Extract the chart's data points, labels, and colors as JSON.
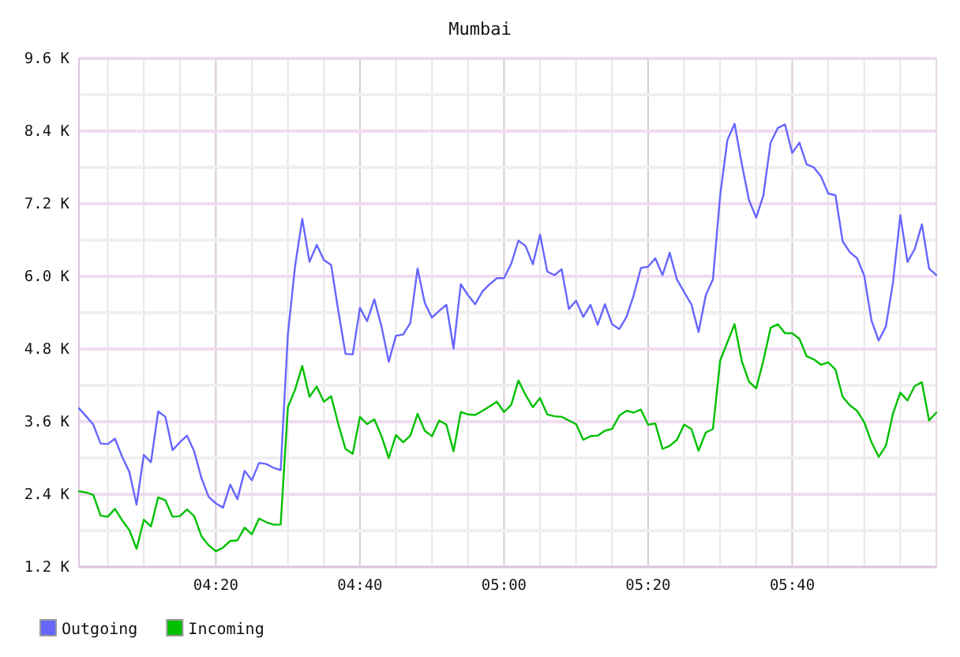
{
  "chart_data": {
    "type": "line",
    "title": "Mumbai",
    "x": [
      4.0167,
      4.0333,
      4.05,
      4.0667,
      4.0833,
      4.1,
      4.1167,
      4.1333,
      4.15,
      4.1667,
      4.1833,
      4.2,
      4.2167,
      4.2333,
      4.25,
      4.2667,
      4.2833,
      4.3,
      4.3167,
      4.3333,
      4.35,
      4.3667,
      4.3833,
      4.4,
      4.4167,
      4.4333,
      4.45,
      4.4667,
      4.4833,
      4.5,
      4.5167,
      4.5333,
      4.55,
      4.5667,
      4.5833,
      4.6,
      4.6167,
      4.6333,
      4.65,
      4.6667,
      4.6833,
      4.7,
      4.7167,
      4.7333,
      4.75,
      4.7667,
      4.7833,
      4.8,
      4.8167,
      4.8333,
      4.85,
      4.8667,
      4.8833,
      4.9,
      4.9167,
      4.9333,
      4.95,
      4.9667,
      4.9833,
      5.0,
      5.0167,
      5.0333,
      5.05,
      5.0667,
      5.0833,
      5.1,
      5.1167,
      5.1333,
      5.15,
      5.1667,
      5.1833,
      5.2,
      5.2167,
      5.2333,
      5.25,
      5.2667,
      5.2833,
      5.3,
      5.3167,
      5.3333,
      5.35,
      5.3667,
      5.3833,
      5.4,
      5.4167,
      5.4333,
      5.45,
      5.4667,
      5.4833,
      5.5,
      5.5167,
      5.5333,
      5.55,
      5.5667,
      5.5833,
      5.6,
      5.6167,
      5.6333,
      5.65,
      5.6667,
      5.6833,
      5.7,
      5.7167,
      5.7333,
      5.75,
      5.7667,
      5.7833,
      5.8,
      5.8167,
      5.8333,
      5.85,
      5.8667,
      5.8833,
      5.9,
      5.9167,
      5.9333,
      5.95,
      5.9667,
      5.9833,
      6.0
    ],
    "series": [
      {
        "name": "Outgoing",
        "color": "#6666ff",
        "values": [
          3.82,
          3.69,
          3.55,
          3.24,
          3.23,
          3.32,
          3.02,
          2.77,
          2.23,
          3.05,
          2.93,
          3.77,
          3.68,
          3.13,
          3.26,
          3.37,
          3.11,
          2.67,
          2.36,
          2.25,
          2.18,
          2.56,
          2.32,
          2.79,
          2.63,
          2.92,
          2.9,
          2.84,
          2.8,
          5.04,
          6.17,
          6.95,
          6.24,
          6.52,
          6.27,
          6.19,
          5.43,
          4.72,
          4.71,
          5.48,
          5.26,
          5.62,
          5.17,
          4.59,
          5.02,
          5.04,
          5.23,
          6.13,
          5.56,
          5.32,
          5.43,
          5.53,
          4.81,
          5.87,
          5.69,
          5.54,
          5.75,
          5.87,
          5.97,
          5.97,
          6.21,
          6.59,
          6.5,
          6.2,
          6.69,
          6.08,
          6.02,
          6.12,
          5.46,
          5.6,
          5.33,
          5.53,
          5.2,
          5.54,
          5.21,
          5.13,
          5.33,
          5.69,
          6.14,
          6.16,
          6.3,
          6.02,
          6.39,
          5.95,
          5.74,
          5.54,
          5.08,
          5.69,
          5.95,
          7.34,
          8.25,
          8.52,
          7.86,
          7.26,
          6.97,
          7.34,
          8.21,
          8.45,
          8.51,
          8.04,
          8.21,
          7.85,
          7.8,
          7.65,
          7.37,
          7.34,
          6.58,
          6.4,
          6.3,
          6.01,
          5.27,
          4.94,
          5.17,
          5.91,
          7.01,
          6.24,
          6.45,
          6.86,
          6.13,
          6.02
        ]
      },
      {
        "name": "Incoming",
        "color": "#00c000",
        "values": [
          2.45,
          2.43,
          2.39,
          2.05,
          2.03,
          2.16,
          1.97,
          1.81,
          1.5,
          1.98,
          1.87,
          2.35,
          2.3,
          2.03,
          2.04,
          2.15,
          2.04,
          1.71,
          1.56,
          1.46,
          1.52,
          1.63,
          1.64,
          1.85,
          1.74,
          2.0,
          1.94,
          1.9,
          1.9,
          3.84,
          4.13,
          4.52,
          4.01,
          4.18,
          3.93,
          4.02,
          3.56,
          3.15,
          3.07,
          3.68,
          3.56,
          3.64,
          3.36,
          3.0,
          3.38,
          3.26,
          3.37,
          3.73,
          3.45,
          3.36,
          3.62,
          3.55,
          3.11,
          3.76,
          3.72,
          3.71,
          3.78,
          3.85,
          3.93,
          3.76,
          3.88,
          4.28,
          4.04,
          3.84,
          3.99,
          3.72,
          3.69,
          3.68,
          3.62,
          3.56,
          3.3,
          3.36,
          3.37,
          3.45,
          3.48,
          3.7,
          3.78,
          3.75,
          3.8,
          3.55,
          3.57,
          3.15,
          3.2,
          3.3,
          3.55,
          3.48,
          3.12,
          3.42,
          3.48,
          4.61,
          4.91,
          5.21,
          4.6,
          4.26,
          4.15,
          4.61,
          5.15,
          5.21,
          5.06,
          5.06,
          4.97,
          4.68,
          4.63,
          4.54,
          4.58,
          4.46,
          4.01,
          3.87,
          3.78,
          3.59,
          3.26,
          3.02,
          3.2,
          3.74,
          4.08,
          3.95,
          4.19,
          4.25,
          3.62,
          3.75
        ]
      }
    ],
    "xlim": [
      4.0167,
      6.0
    ],
    "xticks": [
      {
        "value": 4.0833,
        "label": null
      },
      {
        "value": 4.1667,
        "label": null
      },
      {
        "value": 4.25,
        "label": null
      },
      {
        "value": 4.3333,
        "label": "04:20"
      },
      {
        "value": 4.4167,
        "label": null
      },
      {
        "value": 4.5,
        "label": null
      },
      {
        "value": 4.5833,
        "label": null
      },
      {
        "value": 4.6667,
        "label": "04:40"
      },
      {
        "value": 4.75,
        "label": null
      },
      {
        "value": 4.8333,
        "label": null
      },
      {
        "value": 4.9167,
        "label": null
      },
      {
        "value": 5.0,
        "label": "05:00"
      },
      {
        "value": 5.0833,
        "label": null
      },
      {
        "value": 5.1667,
        "label": null
      },
      {
        "value": 5.25,
        "label": null
      },
      {
        "value": 5.3333,
        "label": "05:20"
      },
      {
        "value": 5.4167,
        "label": null
      },
      {
        "value": 5.5,
        "label": null
      },
      {
        "value": 5.5833,
        "label": null
      },
      {
        "value": 5.6667,
        "label": "05:40"
      },
      {
        "value": 5.75,
        "label": null
      },
      {
        "value": 5.8333,
        "label": null
      },
      {
        "value": 5.9167,
        "label": null
      }
    ],
    "ylim": [
      1.2,
      9.6
    ],
    "yticks": [
      {
        "value": 1.2,
        "label": "1.2 K"
      },
      {
        "value": 1.8,
        "label": null
      },
      {
        "value": 2.4,
        "label": "2.4 K"
      },
      {
        "value": 3.0,
        "label": null
      },
      {
        "value": 3.6,
        "label": "3.6 K"
      },
      {
        "value": 4.2,
        "label": null
      },
      {
        "value": 4.8,
        "label": "4.8 K"
      },
      {
        "value": 5.4,
        "label": null
      },
      {
        "value": 6.0,
        "label": "6.0 K"
      },
      {
        "value": 6.6,
        "label": null
      },
      {
        "value": 7.2,
        "label": "7.2 K"
      },
      {
        "value": 7.8,
        "label": null
      },
      {
        "value": 8.4,
        "label": "8.4 K"
      },
      {
        "value": 9.0,
        "label": null
      },
      {
        "value": 9.6,
        "label": "9.6 K"
      }
    ],
    "grid": true,
    "legend": "bottom left"
  }
}
